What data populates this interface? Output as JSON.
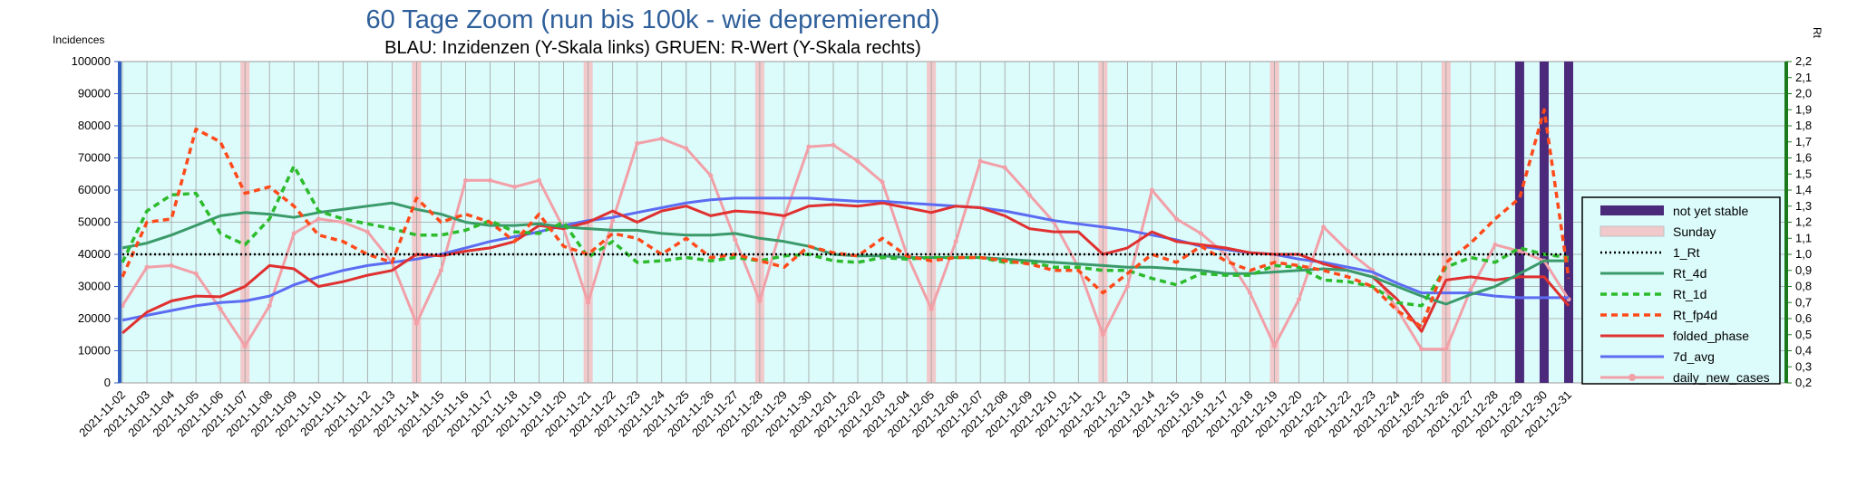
{
  "chart_data": {
    "type": "line",
    "title": "60 Tage Zoom  (nun bis 100k - wie depremierend)",
    "subtitle": "BLAU: Inzidenzen (Y-Skala links)     GRUEN: R-Wert (Y-Skala rechts)",
    "ylabel_left": "Incidences",
    "ylabel_right": "Rt",
    "ylim_left": [
      0,
      100000
    ],
    "ylim_right": [
      0.2,
      2.2
    ],
    "yticks_left": [
      "0",
      "10000",
      "20000",
      "30000",
      "40000",
      "50000",
      "60000",
      "70000",
      "80000",
      "90000",
      "100000"
    ],
    "yticks_right": [
      "0,2",
      "0,3",
      "0,4",
      "0,5",
      "0,6",
      "0,7",
      "0,8",
      "0,9",
      "1,0",
      "1,1",
      "1,2",
      "1,3",
      "1,4",
      "1,5",
      "1,6",
      "1,7",
      "1,8",
      "1,9",
      "2,0",
      "2,1",
      "2,2"
    ],
    "grid": true,
    "legend_position": "right",
    "x": [
      "2021-11-02",
      "2021-11-03",
      "2021-11-04",
      "2021-11-05",
      "2021-11-06",
      "2021-11-07",
      "2021-11-08",
      "2021-11-09",
      "2021-11-10",
      "2021-11-11",
      "2021-11-12",
      "2021-11-13",
      "2021-11-14",
      "2021-11-15",
      "2021-11-16",
      "2021-11-17",
      "2021-11-18",
      "2021-11-19",
      "2021-11-20",
      "2021-11-21",
      "2021-11-22",
      "2021-11-23",
      "2021-11-24",
      "2021-11-25",
      "2021-11-26",
      "2021-11-27",
      "2021-11-28",
      "2021-11-29",
      "2021-11-30",
      "2021-12-01",
      "2021-12-02",
      "2021-12-03",
      "2021-12-04",
      "2021-12-05",
      "2021-12-06",
      "2021-12-07",
      "2021-12-08",
      "2021-12-09",
      "2021-12-10",
      "2021-12-11",
      "2021-12-12",
      "2021-12-13",
      "2021-12-14",
      "2021-12-15",
      "2021-12-16",
      "2021-12-17",
      "2021-12-18",
      "2021-12-19",
      "2021-12-20",
      "2021-12-21",
      "2021-12-22",
      "2021-12-23",
      "2021-12-24",
      "2021-12-25",
      "2021-12-26",
      "2021-12-27",
      "2021-12-28",
      "2021-12-29",
      "2021-12-30",
      "2021-12-31"
    ],
    "sundays": [
      "2021-11-07",
      "2021-11-14",
      "2021-11-21",
      "2021-11-28",
      "2021-12-05",
      "2021-12-12",
      "2021-12-19",
      "2021-12-26"
    ],
    "not_yet_stable": [
      "2021-12-29",
      "2021-12-30",
      "2021-12-31"
    ],
    "series": [
      {
        "name": "not yet stable",
        "type": "bar",
        "color": "#4b2a7b"
      },
      {
        "name": "Sunday",
        "type": "bar",
        "color": "#f2c9cb"
      },
      {
        "name": "1_Rt",
        "axis": "right",
        "style": "dotted",
        "color": "#000000",
        "values": [
          1,
          1,
          1,
          1,
          1,
          1,
          1,
          1,
          1,
          1,
          1,
          1,
          1,
          1,
          1,
          1,
          1,
          1,
          1,
          1,
          1,
          1,
          1,
          1,
          1,
          1,
          1,
          1,
          1,
          1,
          1,
          1,
          1,
          1,
          1,
          1,
          1,
          1,
          1,
          1,
          1,
          1,
          1,
          1,
          1,
          1,
          1,
          1,
          1,
          1,
          1,
          1,
          1,
          1,
          1,
          1,
          1,
          1,
          1,
          1
        ]
      },
      {
        "name": "Rt_4d",
        "axis": "right",
        "style": "solid",
        "color": "#3a9a6a",
        "values": [
          1.04,
          1.07,
          1.12,
          1.18,
          1.24,
          1.26,
          1.25,
          1.23,
          1.26,
          1.28,
          1.3,
          1.32,
          1.28,
          1.25,
          1.2,
          1.18,
          1.18,
          1.19,
          1.17,
          1.16,
          1.15,
          1.15,
          1.13,
          1.12,
          1.12,
          1.13,
          1.1,
          1.08,
          1.05,
          1.0,
          0.99,
          0.99,
          0.98,
          0.98,
          0.98,
          0.98,
          0.97,
          0.96,
          0.95,
          0.94,
          0.93,
          0.92,
          0.92,
          0.91,
          0.9,
          0.88,
          0.88,
          0.89,
          0.9,
          0.91,
          0.9,
          0.86,
          0.8,
          0.74,
          0.69,
          0.75,
          0.8,
          0.88,
          0.96,
          0.96
        ]
      },
      {
        "name": "Rt_1d",
        "axis": "right",
        "style": "dashed",
        "color": "#2bbb2b",
        "values": [
          0.95,
          1.27,
          1.37,
          1.38,
          1.13,
          1.06,
          1.22,
          1.55,
          1.27,
          1.22,
          1.19,
          1.16,
          1.12,
          1.12,
          1.15,
          1.21,
          1.14,
          1.13,
          1.2,
          0.98,
          1.08,
          0.95,
          0.96,
          0.98,
          0.96,
          0.98,
          0.96,
          0.99,
          1.0,
          0.96,
          0.95,
          0.98,
          0.97,
          0.98,
          0.98,
          0.98,
          0.95,
          0.95,
          0.92,
          0.92,
          0.9,
          0.9,
          0.85,
          0.81,
          0.88,
          0.87,
          0.87,
          0.93,
          0.92,
          0.84,
          0.83,
          0.8,
          0.7,
          0.68,
          0.92,
          0.98,
          0.95,
          1.04,
          1.0,
          0.98
        ]
      },
      {
        "name": "Rt_fp4d",
        "axis": "right",
        "style": "dashed",
        "color": "#ff4a1a",
        "values": [
          0.86,
          1.2,
          1.22,
          1.78,
          1.7,
          1.38,
          1.42,
          1.3,
          1.12,
          1.08,
          1.0,
          0.95,
          1.35,
          1.2,
          1.25,
          1.2,
          1.08,
          1.25,
          1.05,
          1.0,
          1.13,
          1.1,
          1.0,
          1.1,
          0.98,
          1.0,
          0.96,
          0.92,
          1.05,
          1.01,
          0.99,
          1.1,
          0.99,
          0.96,
          0.98,
          0.98,
          0.96,
          0.94,
          0.9,
          0.9,
          0.76,
          0.88,
          1.0,
          0.95,
          1.05,
          0.96,
          0.9,
          0.95,
          0.93,
          0.9,
          0.86,
          0.8,
          0.65,
          0.55,
          0.95,
          1.07,
          1.22,
          1.35,
          1.9,
          0.85
        ]
      },
      {
        "name": "folded_phase",
        "axis": "left",
        "style": "solid",
        "color": "#e03030",
        "values": [
          15500,
          22000,
          25500,
          27000,
          26800,
          30000,
          36500,
          35500,
          30000,
          31500,
          33500,
          35000,
          40000,
          39500,
          41000,
          42000,
          44000,
          49000,
          48000,
          50000,
          53500,
          50000,
          53500,
          55000,
          52000,
          53500,
          53000,
          52000,
          55000,
          55500,
          55000,
          56000,
          54500,
          53000,
          55000,
          54500,
          52000,
          48000,
          47000,
          47000,
          40000,
          42000,
          47000,
          44000,
          43000,
          42000,
          40500,
          40000,
          40000,
          37000,
          35000,
          33000,
          26000,
          16000,
          32000,
          33000,
          32000,
          33000,
          33000,
          24000
        ]
      },
      {
        "name": "7d_avg",
        "axis": "left",
        "style": "solid",
        "color": "#5b6cf2",
        "values": [
          19500,
          21000,
          22500,
          24000,
          25000,
          25500,
          27000,
          30500,
          33000,
          35000,
          36500,
          37500,
          38500,
          40000,
          42000,
          44000,
          45500,
          47000,
          49000,
          50500,
          51500,
          53000,
          54500,
          56000,
          57000,
          57500,
          57500,
          57500,
          57500,
          57000,
          56500,
          56500,
          56000,
          55500,
          55000,
          54500,
          53500,
          52000,
          50500,
          49500,
          48500,
          47500,
          46000,
          44500,
          42500,
          41500,
          40500,
          40000,
          38500,
          37500,
          36000,
          34500,
          31000,
          28000,
          28000,
          28000,
          27000,
          26500,
          26500,
          26500
        ]
      },
      {
        "name": "daily_new_cases",
        "axis": "left",
        "style": "marker",
        "color": "#f2a0a8",
        "values": [
          24000,
          36000,
          36500,
          34000,
          23000,
          11500,
          24000,
          46500,
          51000,
          50000,
          47000,
          37500,
          18500,
          35000,
          63000,
          63000,
          61000,
          63000,
          48000,
          25000,
          50500,
          74500,
          76000,
          73000,
          64500,
          44500,
          25500,
          51500,
          73500,
          74000,
          69000,
          62500,
          40000,
          23000,
          44000,
          69000,
          67000,
          58500,
          50000,
          36000,
          15000,
          30000,
          60000,
          51000,
          46500,
          40000,
          28000,
          11500,
          26000,
          48500,
          41000,
          35000,
          23000,
          10500,
          10500,
          29000,
          43000,
          41000,
          38000,
          26000
        ]
      }
    ]
  }
}
